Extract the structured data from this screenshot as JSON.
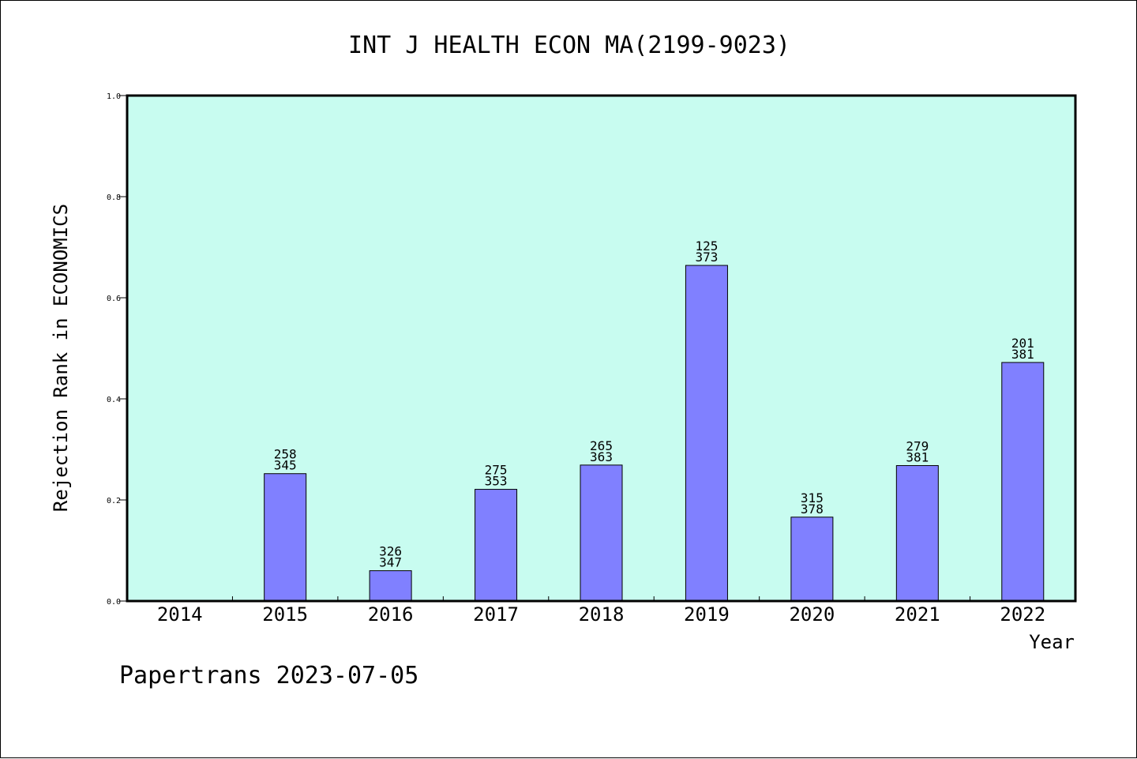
{
  "chart_data": {
    "type": "bar",
    "title": "INT J HEALTH ECON MA(2199-9023)",
    "xlabel": "Year",
    "ylabel": "Rejection Rank in ECONOMICS",
    "ylim": [
      0.0,
      1.0
    ],
    "yticks": [
      "0.0",
      "0.2",
      "0.4",
      "0.6",
      "0.8",
      "1.0"
    ],
    "categories": [
      "2014",
      "2015",
      "2016",
      "2017",
      "2018",
      "2019",
      "2020",
      "2021",
      "2022"
    ],
    "values": [
      0,
      0.252,
      0.06,
      0.221,
      0.269,
      0.664,
      0.166,
      0.268,
      0.472
    ],
    "labels_top": [
      "",
      "258",
      "326",
      "275",
      "265",
      "125",
      "315",
      "279",
      "201"
    ],
    "labels_bottom": [
      "",
      "345",
      "347",
      "353",
      "363",
      "373",
      "378",
      "381",
      "381"
    ],
    "grid": false,
    "colors": {
      "plot_background": "#c8fcf0",
      "bar_fill": "#8080ff",
      "bar_stroke": "#000000"
    }
  },
  "footer": "Papertrans 2023-07-05"
}
